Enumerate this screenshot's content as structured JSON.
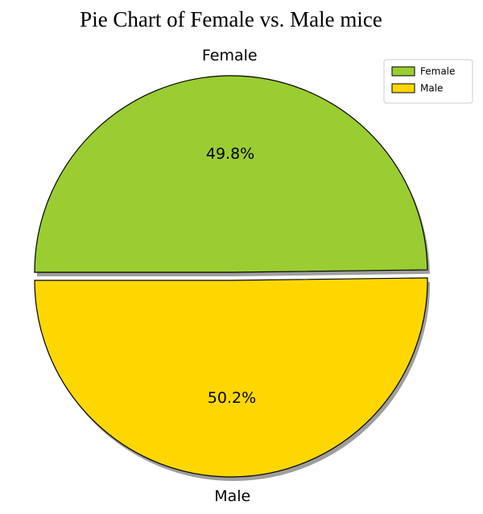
{
  "chart_data": {
    "type": "pie",
    "title": "Pie Chart of Female vs. Male mice",
    "categories": [
      "Female",
      "Male"
    ],
    "values": [
      49.8,
      50.2
    ],
    "percent_labels": [
      "49.8%",
      "50.2%"
    ],
    "colors": [
      "#9acd32",
      "#ffd700"
    ],
    "edge_color": "#000000",
    "shadow": true,
    "exploded": true,
    "legend": {
      "position": "top-right",
      "entries": [
        "Female",
        "Male"
      ]
    }
  }
}
